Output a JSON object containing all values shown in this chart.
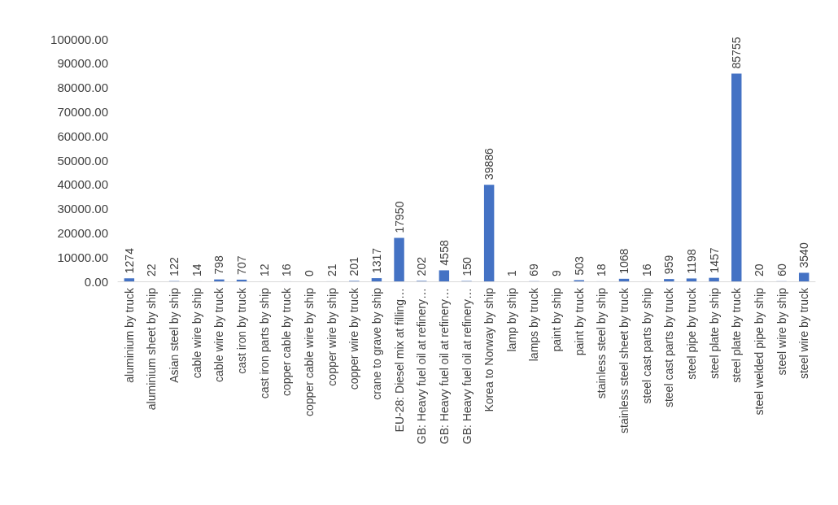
{
  "chart_data": {
    "type": "bar",
    "categories": [
      "aluminium by truck",
      "aluminium sheet by ship",
      "Asian steel by ship",
      "cable wire by ship",
      "cable wire by truck",
      "cast iron by truck",
      "cast iron parts by ship",
      "copper cable by truck",
      "copper cable wire by ship",
      "copper wire by ship",
      "copper wire by truck",
      "crane to grave by ship",
      "EU-28: Diesel mix at filling…",
      "GB: Heavy fuel oil at refinery…",
      "GB: Heavy fuel oil at refinery…",
      "GB: Heavy fuel oil at refinery…",
      "Korea to Norway by ship",
      "lamp by ship",
      "lamps by truck",
      "paint by ship",
      "paint by truck",
      "stainless steel by ship",
      "stainless steel sheet by truck",
      "steel cast parts by ship",
      "steel cast parts by truck",
      "steel pipe by truck",
      "steel plate by ship",
      "steel plate by truck",
      "steel welded pipe by ship",
      "steel wire by ship",
      "steel wire by truck"
    ],
    "values": [
      1274,
      22,
      122,
      14,
      798,
      707,
      12,
      16,
      0,
      21,
      201,
      1317,
      17950,
      202,
      4558,
      150,
      39886,
      1,
      69,
      9,
      503,
      18,
      1068,
      16,
      959,
      1198,
      1457,
      85755,
      20,
      60,
      3540
    ],
    "color": "#4472c4",
    "ylim": [
      0,
      100000
    ],
    "yticks": [
      {
        "value": 0,
        "label": "0.00"
      },
      {
        "value": 10000,
        "label": "10000.00"
      },
      {
        "value": 20000,
        "label": "20000.00"
      },
      {
        "value": 30000,
        "label": "30000.00"
      },
      {
        "value": 40000,
        "label": "40000.00"
      },
      {
        "value": 50000,
        "label": "50000.00"
      },
      {
        "value": 60000,
        "label": "60000.00"
      },
      {
        "value": 70000,
        "label": "70000.00"
      },
      {
        "value": 80000,
        "label": "80000.00"
      },
      {
        "value": 90000,
        "label": "90000.00"
      },
      {
        "value": 100000,
        "label": "100000.00"
      }
    ],
    "grid": false,
    "data_labels": true
  }
}
